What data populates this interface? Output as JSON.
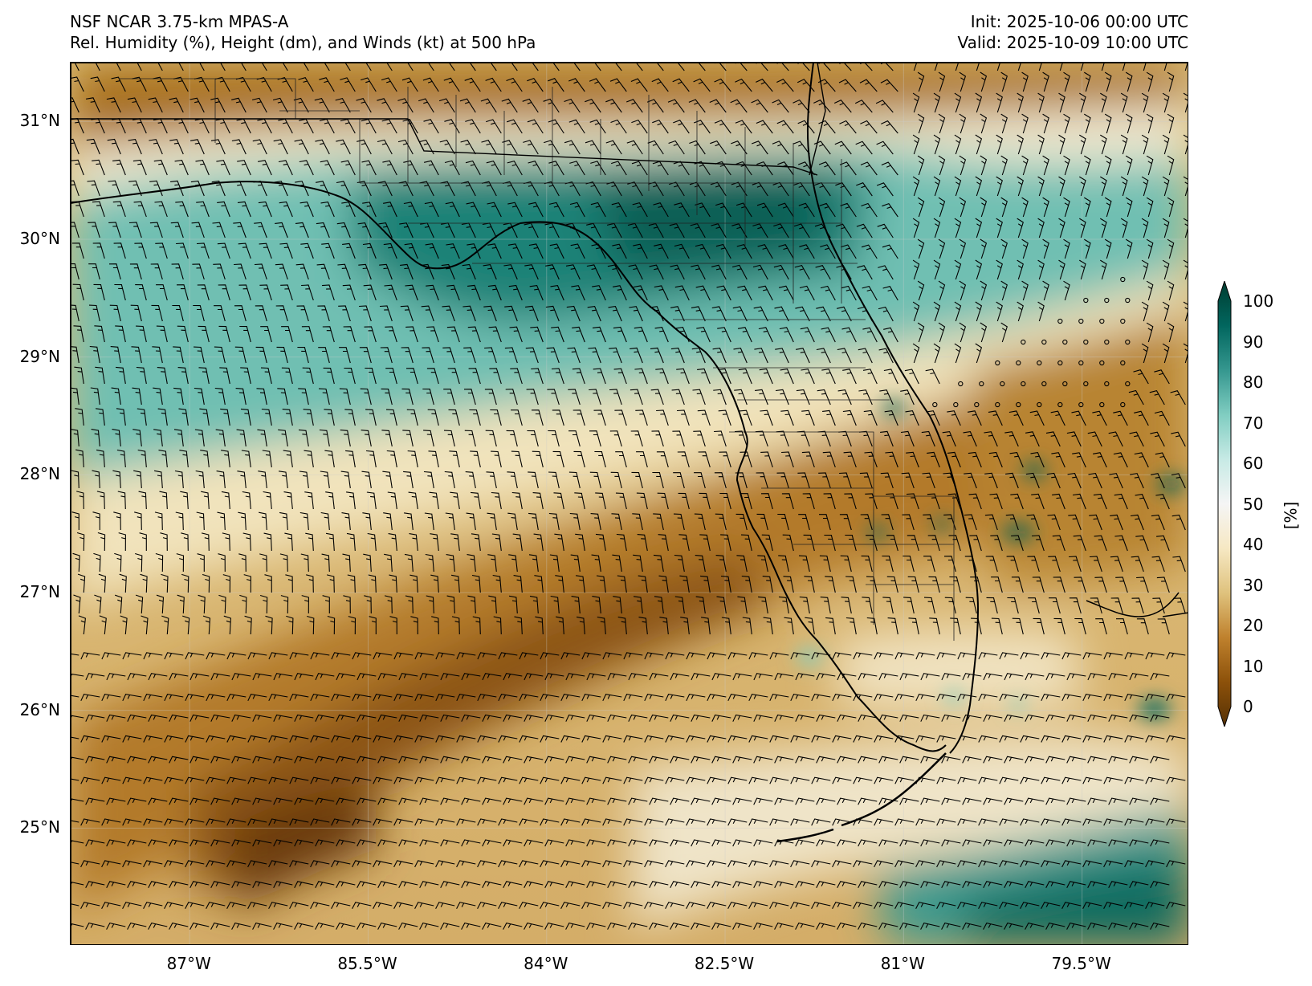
{
  "header": {
    "model": "NSF NCAR 3.75-km MPAS-A",
    "field": "Rel. Humidity (%), Height (dm), and Winds (kt) at 500 hPa",
    "init": "Init: 2025-10-06 00:00 UTC",
    "valid": "Valid: 2025-10-09 10:00 UTC"
  },
  "axes": {
    "lat_labels": [
      {
        "text": "31°N",
        "value": 31
      },
      {
        "text": "30°N",
        "value": 30
      },
      {
        "text": "29°N",
        "value": 29
      },
      {
        "text": "28°N",
        "value": 28
      },
      {
        "text": "27°N",
        "value": 27
      },
      {
        "text": "26°N",
        "value": 26
      },
      {
        "text": "25°N",
        "value": 25
      }
    ],
    "lon_labels": [
      {
        "text": "87°W",
        "value": -87
      },
      {
        "text": "85.5°W",
        "value": -85.5
      },
      {
        "text": "84°W",
        "value": -84
      },
      {
        "text": "82.5°W",
        "value": -82.5
      },
      {
        "text": "81°W",
        "value": -81
      },
      {
        "text": "79.5°W",
        "value": -79.5
      }
    ],
    "lon_range": [
      -88.0,
      -78.6
    ],
    "lat_range": [
      24.0,
      31.5
    ]
  },
  "colorbar": {
    "unit": "[%]",
    "ticks": [
      "100",
      "90",
      "80",
      "70",
      "60",
      "50",
      "40",
      "30",
      "20",
      "10",
      "0"
    ],
    "range": [
      0,
      100
    ],
    "colormap": [
      "#543005",
      "#8c510a",
      "#bf812d",
      "#dfc27d",
      "#f6e8c3",
      "#f5f5f5",
      "#c7eae5",
      "#80cdc1",
      "#35978f",
      "#01665e",
      "#003c30"
    ]
  },
  "map": {
    "coastline_color": "#000000",
    "barb_color": "#000000"
  }
}
